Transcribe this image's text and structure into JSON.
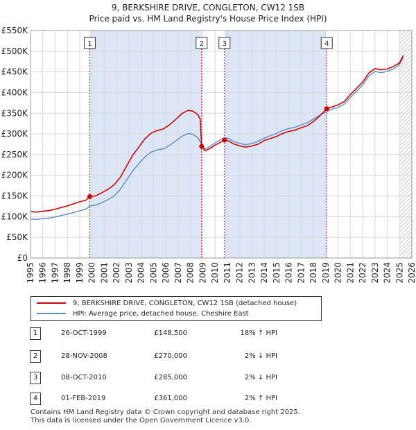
{
  "title_line1": "9, BERKSHIRE DRIVE, CONGLETON, CW12 1SB",
  "title_line2": "Price paid vs. HM Land Registry's House Price Index (HPI)",
  "colors": {
    "property": "#cc0000",
    "hpi": "#5b8ac6",
    "shade": "#dde6f7",
    "marker_line": "#cc0000"
  },
  "chart_data": {
    "type": "line",
    "ylim": [
      0,
      550000
    ],
    "xlim": [
      1995,
      2026
    ],
    "y_ticks": [
      {
        "value": 0,
        "label": "£0"
      },
      {
        "value": 50000,
        "label": "£50K"
      },
      {
        "value": 100000,
        "label": "£100K"
      },
      {
        "value": 150000,
        "label": "£150K"
      },
      {
        "value": 200000,
        "label": "£200K"
      },
      {
        "value": 250000,
        "label": "£250K"
      },
      {
        "value": 300000,
        "label": "£300K"
      },
      {
        "value": 350000,
        "label": "£350K"
      },
      {
        "value": 400000,
        "label": "£400K"
      },
      {
        "value": 450000,
        "label": "£450K"
      },
      {
        "value": 500000,
        "label": "£500K"
      },
      {
        "value": 550000,
        "label": "£550K"
      }
    ],
    "x_ticks": [
      1995,
      1996,
      1997,
      1998,
      1999,
      2000,
      2001,
      2002,
      2003,
      2004,
      2005,
      2006,
      2007,
      2008,
      2009,
      2010,
      2011,
      2012,
      2013,
      2014,
      2015,
      2016,
      2017,
      2018,
      2019,
      2020,
      2021,
      2022,
      2023,
      2024,
      2025,
      2026
    ],
    "shaded_ranges": [
      [
        1999.82,
        2008.91
      ],
      [
        2010.77,
        2019.08
      ]
    ],
    "hatch_from": 2025.0,
    "series": [
      {
        "name": "9, BERKSHIRE DRIVE, CONGLETON, CW12 1SB (detached house)",
        "key": "property",
        "points": [
          [
            1995.0,
            112000
          ],
          [
            1995.5,
            111000
          ],
          [
            1996.0,
            113000
          ],
          [
            1996.5,
            114500
          ],
          [
            1997.0,
            118000
          ],
          [
            1997.5,
            122000
          ],
          [
            1998.0,
            126000
          ],
          [
            1998.5,
            131000
          ],
          [
            1999.0,
            136000
          ],
          [
            1999.5,
            139500
          ],
          [
            1999.82,
            148500
          ],
          [
            2000.3,
            150000
          ],
          [
            2000.8,
            158000
          ],
          [
            2001.3,
            166000
          ],
          [
            2001.8,
            177000
          ],
          [
            2002.3,
            195000
          ],
          [
            2002.8,
            222000
          ],
          [
            2003.3,
            248000
          ],
          [
            2003.8,
            268000
          ],
          [
            2004.3,
            288000
          ],
          [
            2004.8,
            302000
          ],
          [
            2005.3,
            308000
          ],
          [
            2005.8,
            312000
          ],
          [
            2006.3,
            322000
          ],
          [
            2006.8,
            335000
          ],
          [
            2007.3,
            349000
          ],
          [
            2007.8,
            357000
          ],
          [
            2008.2,
            355000
          ],
          [
            2008.6,
            347000
          ],
          [
            2008.8,
            335000
          ],
          [
            2008.91,
            270000
          ],
          [
            2009.2,
            259000
          ],
          [
            2009.6,
            265000
          ],
          [
            2010.0,
            273000
          ],
          [
            2010.4,
            279000
          ],
          [
            2010.77,
            285000
          ],
          [
            2011.1,
            283000
          ],
          [
            2011.5,
            276000
          ],
          [
            2012.0,
            271000
          ],
          [
            2012.5,
            268000
          ],
          [
            2013.0,
            271000
          ],
          [
            2013.5,
            275000
          ],
          [
            2014.0,
            284000
          ],
          [
            2014.5,
            289000
          ],
          [
            2015.0,
            294000
          ],
          [
            2015.5,
            301000
          ],
          [
            2016.0,
            306000
          ],
          [
            2016.5,
            309000
          ],
          [
            2017.0,
            315000
          ],
          [
            2017.5,
            320000
          ],
          [
            2018.0,
            330000
          ],
          [
            2018.5,
            343000
          ],
          [
            2019.08,
            361000
          ],
          [
            2019.5,
            365000
          ],
          [
            2020.0,
            370000
          ],
          [
            2020.5,
            378000
          ],
          [
            2021.0,
            395000
          ],
          [
            2021.5,
            410000
          ],
          [
            2022.0,
            425000
          ],
          [
            2022.5,
            447000
          ],
          [
            2023.0,
            458000
          ],
          [
            2023.5,
            455000
          ],
          [
            2024.0,
            457000
          ],
          [
            2024.5,
            463000
          ],
          [
            2025.0,
            472000
          ],
          [
            2025.3,
            490000
          ]
        ]
      },
      {
        "name": "HPI: Average price, detached house, Cheshire East",
        "key": "hpi",
        "points": [
          [
            1995.0,
            94000
          ],
          [
            1995.5,
            93500
          ],
          [
            1996.0,
            95000
          ],
          [
            1996.5,
            96500
          ],
          [
            1997.0,
            99000
          ],
          [
            1997.5,
            103000
          ],
          [
            1998.0,
            106000
          ],
          [
            1998.5,
            110000
          ],
          [
            1999.0,
            114000
          ],
          [
            1999.5,
            118000
          ],
          [
            1999.82,
            125500
          ],
          [
            2000.3,
            128000
          ],
          [
            2000.8,
            134000
          ],
          [
            2001.3,
            141000
          ],
          [
            2001.8,
            150000
          ],
          [
            2002.3,
            166000
          ],
          [
            2002.8,
            188000
          ],
          [
            2003.3,
            210000
          ],
          [
            2003.8,
            228000
          ],
          [
            2004.3,
            244000
          ],
          [
            2004.8,
            256000
          ],
          [
            2005.3,
            261000
          ],
          [
            2005.8,
            264000
          ],
          [
            2006.3,
            272000
          ],
          [
            2006.8,
            283000
          ],
          [
            2007.3,
            294000
          ],
          [
            2007.8,
            301000
          ],
          [
            2008.2,
            299000
          ],
          [
            2008.6,
            291000
          ],
          [
            2008.91,
            275500
          ],
          [
            2009.2,
            263000
          ],
          [
            2009.6,
            270000
          ],
          [
            2010.0,
            278000
          ],
          [
            2010.4,
            285000
          ],
          [
            2010.77,
            291000
          ],
          [
            2011.1,
            289000
          ],
          [
            2011.5,
            282000
          ],
          [
            2012.0,
            277000
          ],
          [
            2012.5,
            274000
          ],
          [
            2013.0,
            277000
          ],
          [
            2013.5,
            282000
          ],
          [
            2014.0,
            290000
          ],
          [
            2014.5,
            296000
          ],
          [
            2015.0,
            301000
          ],
          [
            2015.5,
            308000
          ],
          [
            2016.0,
            313000
          ],
          [
            2016.5,
            316000
          ],
          [
            2017.0,
            322000
          ],
          [
            2017.5,
            327000
          ],
          [
            2018.0,
            336000
          ],
          [
            2018.5,
            345000
          ],
          [
            2019.08,
            354000
          ],
          [
            2019.5,
            360000
          ],
          [
            2020.0,
            364000
          ],
          [
            2020.5,
            372000
          ],
          [
            2021.0,
            388000
          ],
          [
            2021.5,
            403000
          ],
          [
            2022.0,
            418000
          ],
          [
            2022.5,
            440000
          ],
          [
            2023.0,
            451000
          ],
          [
            2023.5,
            448000
          ],
          [
            2024.0,
            451000
          ],
          [
            2024.5,
            457000
          ],
          [
            2025.0,
            468000
          ],
          [
            2025.3,
            485000
          ]
        ]
      }
    ],
    "sales": [
      {
        "num": "1",
        "x": 1999.82,
        "y": 148500
      },
      {
        "num": "2",
        "x": 2008.91,
        "y": 270000
      },
      {
        "num": "3",
        "x": 2010.77,
        "y": 285000
      },
      {
        "num": "4",
        "x": 2019.08,
        "y": 361000
      }
    ]
  },
  "legend": {
    "property_label": "9, BERKSHIRE DRIVE, CONGLETON, CW12 1SB (detached house)",
    "hpi_label": "HPI: Average price, detached house, Cheshire East"
  },
  "transactions": [
    {
      "num": "1",
      "date": "26-OCT-1999",
      "price": "£148,500",
      "hpi": "18% ↑ HPI"
    },
    {
      "num": "2",
      "date": "28-NOV-2008",
      "price": "£270,000",
      "hpi": "2% ↓ HPI"
    },
    {
      "num": "3",
      "date": "08-OCT-2010",
      "price": "£285,000",
      "hpi": "2% ↓ HPI"
    },
    {
      "num": "4",
      "date": "01-FEB-2019",
      "price": "£361,000",
      "hpi": "2% ↑ HPI"
    }
  ],
  "footer_line1": "Contains HM Land Registry data © Crown copyright and database right 2025.",
  "footer_line2": "This data is licensed under the Open Government Licence v3.0."
}
